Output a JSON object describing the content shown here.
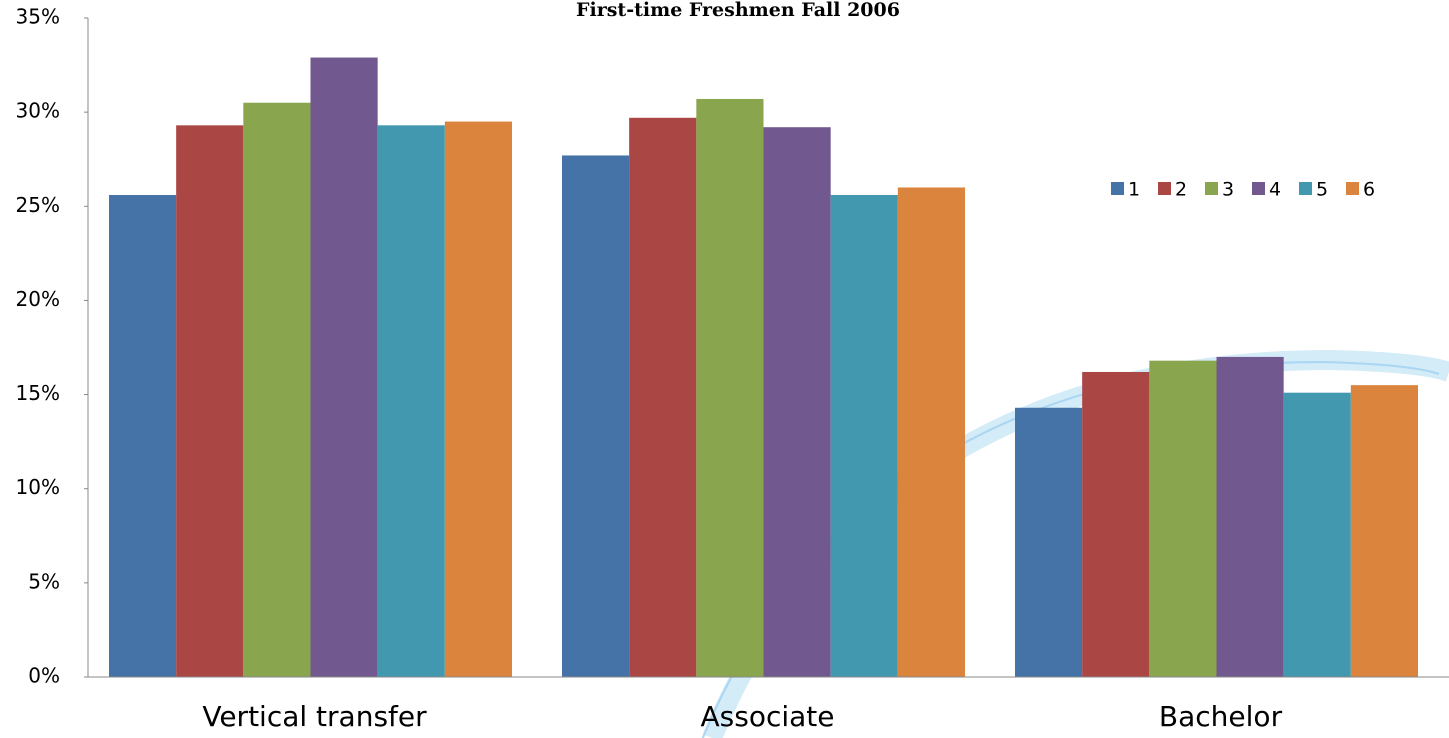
{
  "chart_data": {
    "type": "bar",
    "title": "First-time Freshmen Fall 2006",
    "categories": [
      "Vertical transfer",
      "Associate",
      "Bachelor"
    ],
    "series": [
      {
        "name": "1",
        "color": "#4572a7",
        "values": [
          25.6,
          27.7,
          14.3
        ]
      },
      {
        "name": "2",
        "color": "#aa4643",
        "values": [
          29.3,
          29.7,
          16.2
        ]
      },
      {
        "name": "3",
        "color": "#89a54e",
        "values": [
          30.5,
          30.7,
          16.8
        ]
      },
      {
        "name": "4",
        "color": "#71588f",
        "values": [
          32.9,
          29.2,
          17.0
        ]
      },
      {
        "name": "5",
        "color": "#4198af",
        "values": [
          29.3,
          25.6,
          15.1
        ]
      },
      {
        "name": "6",
        "color": "#db843d",
        "values": [
          29.5,
          26.0,
          15.5
        ]
      }
    ],
    "ylim": [
      0,
      35
    ],
    "yticks": [
      {
        "value": 0,
        "label": "0%"
      },
      {
        "value": 5,
        "label": "5%"
      },
      {
        "value": 10,
        "label": "10%"
      },
      {
        "value": 15,
        "label": "15%"
      },
      {
        "value": 20,
        "label": "20%"
      },
      {
        "value": 25,
        "label": "25%"
      },
      {
        "value": 30,
        "label": "30%"
      },
      {
        "value": 35,
        "label": "35%"
      }
    ],
    "grid": false,
    "legend": "right"
  }
}
